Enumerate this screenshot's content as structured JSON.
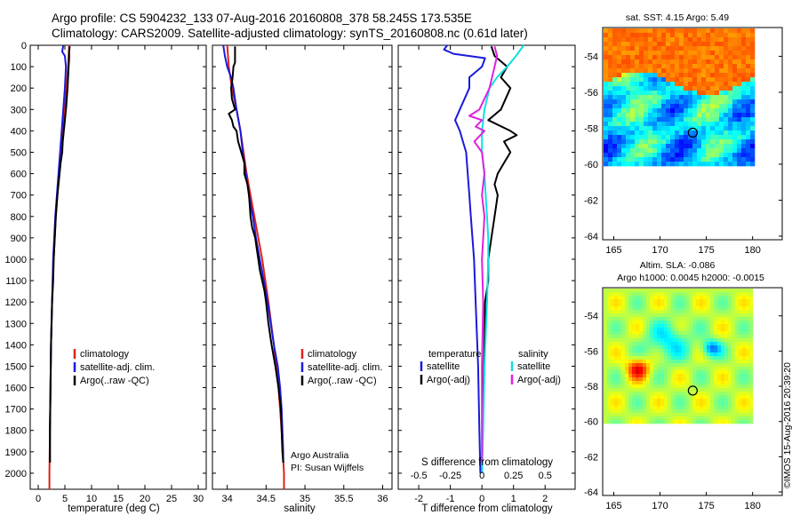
{
  "header": {
    "line1": "Argo profile: CS 5904232_133 07-Aug-2016 20160808_378 58.245S 173.535E",
    "line2": "Climatology: CARS2009. Satellite-adjusted climatology: synTS_20160808.nc (0.61d later)"
  },
  "colors": {
    "climatology": "#e0201a",
    "satellite": "#1a1adc",
    "argo": "#000000",
    "sat_salinity": "#10e0e0",
    "argo_salinity": "#e020e0",
    "marker": "#000000"
  },
  "chart_data": [
    {
      "id": "temperature",
      "type": "line",
      "xlabel": "temperature (deg C)",
      "ylabel": "",
      "xlim": [
        -1.5,
        31.5
      ],
      "ylim": [
        2075,
        0
      ],
      "xticks": [
        "0",
        "5",
        "10",
        "15",
        "20",
        "25",
        "30"
      ],
      "yticks": [
        "0",
        "100",
        "200",
        "300",
        "400",
        "500",
        "600",
        "700",
        "800",
        "900",
        "1000",
        "1100",
        "1200",
        "1300",
        "1400",
        "1500",
        "1600",
        "1700",
        "1800",
        "1900",
        "2000"
      ],
      "legend": [
        "climatology",
        "satellite-adj. clim.",
        "Argo(..raw -QC)"
      ],
      "series": [
        {
          "name": "climatology",
          "color": "#e0201a",
          "depth": [
            0,
            50,
            100,
            200,
            300,
            400,
            500,
            600,
            700,
            800,
            900,
            1000,
            1200,
            1400,
            1600,
            1800,
            2000,
            2075
          ],
          "values": [
            5.8,
            5.7,
            5.6,
            5.3,
            5.0,
            4.6,
            4.2,
            3.9,
            3.6,
            3.3,
            3.1,
            2.9,
            2.6,
            2.4,
            2.3,
            2.2,
            2.1,
            2.1
          ]
        },
        {
          "name": "satellite-adj. clim.",
          "color": "#1a1adc",
          "depth": [
            0,
            30,
            50,
            100,
            200,
            300,
            400,
            500,
            600,
            700,
            800,
            900,
            1000,
            1200,
            1400,
            1600,
            1800,
            1950
          ],
          "values": [
            4.7,
            4.5,
            5.0,
            5.2,
            5.0,
            4.7,
            4.4,
            4.1,
            3.8,
            3.5,
            3.2,
            3.0,
            2.8,
            2.6,
            2.4,
            2.3,
            2.2,
            2.2
          ]
        },
        {
          "name": "Argo(..raw -QC)",
          "color": "#000000",
          "depth": [
            5,
            30,
            60,
            100,
            150,
            200,
            300,
            400,
            450,
            500,
            550,
            600,
            700,
            800,
            900,
            1000,
            1100,
            1200,
            1300,
            1400,
            1500,
            1600,
            1700,
            1800,
            1900,
            1950
          ],
          "values": [
            5.9,
            5.8,
            5.8,
            5.7,
            5.6,
            5.5,
            5.2,
            4.8,
            4.6,
            4.5,
            4.2,
            4.0,
            3.6,
            3.3,
            3.1,
            2.9,
            2.8,
            2.6,
            2.5,
            2.4,
            2.35,
            2.3,
            2.25,
            2.2,
            2.2,
            2.2
          ]
        }
      ]
    },
    {
      "id": "salinity",
      "type": "line",
      "xlabel": "salinity",
      "ylabel": "",
      "xlim": [
        33.81,
        36.12
      ],
      "ylim": [
        2075,
        0
      ],
      "xticks": [
        "34",
        "34.5",
        "35",
        "35.5",
        "36"
      ],
      "legend": [
        "climatology",
        "satellite-adj. clim.",
        "Argo(..raw -QC)"
      ],
      "annotations": [
        "Argo Australia",
        "PI: Susan Wijffels"
      ],
      "series": [
        {
          "name": "climatology",
          "color": "#e0201a",
          "depth": [
            0,
            100,
            200,
            300,
            400,
            500,
            600,
            700,
            800,
            900,
            1000,
            1200,
            1400,
            1600,
            1800,
            2000,
            2075
          ],
          "values": [
            34.0,
            34.02,
            34.06,
            34.12,
            34.17,
            34.21,
            34.25,
            34.3,
            34.35,
            34.4,
            34.45,
            34.53,
            34.6,
            34.66,
            34.7,
            34.73,
            34.73
          ]
        },
        {
          "name": "satellite-adj. clim.",
          "color": "#1a1adc",
          "depth": [
            0,
            50,
            100,
            150,
            200,
            300,
            400,
            500,
            600,
            700,
            800,
            900,
            1000,
            1100,
            1200,
            1300,
            1400,
            1500,
            1600,
            1700,
            1800,
            1900,
            1950
          ],
          "values": [
            33.95,
            33.97,
            34.0,
            34.05,
            34.08,
            34.12,
            34.17,
            34.2,
            34.24,
            34.28,
            34.33,
            34.37,
            34.42,
            34.47,
            34.52,
            34.56,
            34.6,
            34.65,
            34.68,
            34.7,
            34.71,
            34.72,
            34.72
          ]
        },
        {
          "name": "Argo(..raw -QC)",
          "color": "#000000",
          "depth": [
            5,
            50,
            80,
            100,
            150,
            200,
            250,
            300,
            320,
            350,
            380,
            400,
            450,
            500,
            550,
            600,
            650,
            700,
            750,
            800,
            850,
            900,
            950,
            1000,
            1050,
            1100,
            1150,
            1200,
            1300,
            1400,
            1500,
            1600,
            1700,
            1800,
            1900,
            1950
          ],
          "values": [
            34.1,
            34.1,
            34.1,
            34.08,
            34.07,
            34.05,
            34.06,
            34.1,
            34.02,
            34.06,
            34.08,
            34.12,
            34.14,
            34.18,
            34.22,
            34.22,
            34.26,
            34.28,
            34.29,
            34.3,
            34.32,
            34.36,
            34.38,
            34.4,
            34.42,
            34.45,
            34.48,
            34.5,
            34.53,
            34.57,
            34.62,
            34.66,
            34.69,
            34.7,
            34.71,
            34.72
          ]
        }
      ]
    },
    {
      "id": "difference",
      "type": "line",
      "xlabel": "T difference from climatology",
      "xlabel_top": "S difference from climatology",
      "xlim": [
        -2.65,
        2.95
      ],
      "ylim": [
        2075,
        0
      ],
      "xticks": [
        "-2",
        "-1",
        "0",
        "1",
        "2"
      ],
      "xticks_top": [
        "-0.5",
        "-0.25",
        "0",
        "0.25",
        "0.5"
      ],
      "legend_headers": [
        "temperature",
        "salinity"
      ],
      "legend_temperature": [
        "satellite",
        "Argo(-adj)"
      ],
      "legend_salinity": [
        "satellite",
        "Argo(-adj)"
      ],
      "series": [
        {
          "name": "satellite",
          "quantity": "temperature",
          "color": "#1a1adc",
          "depth": [
            0,
            20,
            40,
            60,
            100,
            150,
            200,
            300,
            350,
            400,
            450,
            500,
            600,
            700,
            800,
            900,
            1000,
            1200,
            1500,
            1800,
            2000
          ],
          "values": [
            -1.1,
            -1.2,
            -0.9,
            0.1,
            0.0,
            -0.4,
            -0.4,
            -0.7,
            -0.85,
            -0.7,
            -0.6,
            -0.5,
            -0.45,
            -0.4,
            -0.35,
            -0.3,
            -0.25,
            -0.2,
            -0.12,
            -0.08,
            -0.05
          ]
        },
        {
          "name": "Argo(-adj)",
          "quantity": "temperature",
          "color": "#000000",
          "depth": [
            5,
            50,
            100,
            150,
            200,
            300,
            350,
            400,
            420,
            450,
            500,
            550,
            600,
            650,
            700,
            800,
            900,
            1000,
            1100,
            1200,
            1400,
            1600,
            1800,
            2000
          ],
          "values": [
            0.3,
            0.4,
            0.8,
            0.6,
            0.9,
            0.6,
            0.2,
            0.9,
            1.1,
            0.7,
            0.9,
            0.7,
            0.5,
            0.4,
            0.5,
            0.4,
            0.3,
            0.2,
            0.2,
            0.1,
            0.08,
            0.05,
            0.02,
            0.0
          ]
        },
        {
          "name": "satellite",
          "quantity": "salinity",
          "color": "#10e0e0",
          "depth": [
            0,
            50,
            100,
            150,
            200,
            300,
            400,
            500,
            600,
            700,
            800,
            900,
            1000,
            1200,
            1500,
            1800,
            2000
          ],
          "values": [
            0.33,
            0.27,
            0.2,
            0.12,
            0.06,
            0.02,
            0.0,
            0.0,
            0.02,
            0.03,
            0.04,
            0.05,
            0.05,
            0.04,
            0.02,
            0.01,
            0.0
          ]
        },
        {
          "name": "Argo(-adj)",
          "quantity": "salinity",
          "color": "#e020e0",
          "depth": [
            5,
            50,
            100,
            200,
            300,
            330,
            350,
            380,
            400,
            450,
            500,
            600,
            700,
            800,
            1000,
            1200,
            1500,
            1800,
            1950
          ],
          "values": [
            0.1,
            0.12,
            0.1,
            0.06,
            -0.02,
            -0.1,
            0.0,
            -0.05,
            0.02,
            -0.06,
            0.0,
            0.02,
            0.0,
            0.02,
            0.0,
            0.01,
            0.0,
            0.0,
            0.0
          ]
        }
      ]
    },
    {
      "id": "sst_map",
      "type": "heatmap",
      "title": "sat. SST: 4.15 Argo: 5.49",
      "xlim": [
        163.8,
        183.2
      ],
      "ylim": [
        -64.2,
        -52.4
      ],
      "xticks": [
        "165",
        "170",
        "175",
        "180"
      ],
      "yticks": [
        "-54",
        "-56",
        "-58",
        "-60",
        "-62",
        "-64"
      ],
      "marker": {
        "lon": 173.535,
        "lat": -58.245
      }
    },
    {
      "id": "sla_map",
      "type": "heatmap",
      "title": "Altim. SLA: -0.086",
      "subtitle": "Argo h1000: 0.0045 h2000: -0.0015",
      "xlim": [
        163.8,
        183.2
      ],
      "ylim": [
        -64.2,
        -52.4
      ],
      "xticks": [
        "165",
        "170",
        "175",
        "180"
      ],
      "yticks": [
        "-54",
        "-56",
        "-58",
        "-60",
        "-62",
        "-64"
      ],
      "marker": {
        "lon": 173.535,
        "lat": -58.245
      }
    }
  ],
  "footer_stamp": "©IMOS 15-Aug-2016 20:39:20"
}
